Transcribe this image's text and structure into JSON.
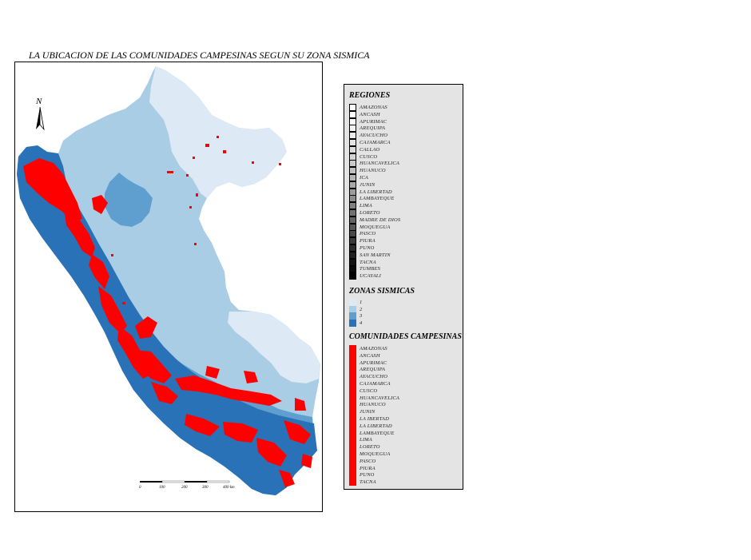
{
  "title": "LA UBICACION DE LAS COMUNIDADES CAMPESINAS SEGUN SU ZONA SISMICA",
  "north_arrow": {
    "label": "N",
    "icon": "north-arrow-icon"
  },
  "scale_bar": {
    "labels": [
      "0",
      "100",
      "200",
      "300",
      "400 km"
    ]
  },
  "colors": {
    "zone1": "#dde9f5",
    "zone2": "#aacde6",
    "zone3": "#5f9fcf",
    "zone4": "#2a72b7",
    "communities": "#ff0000"
  },
  "legend": {
    "regiones": {
      "title": "REGIONES",
      "items": [
        {
          "label": "AMAZONAS",
          "color": "#ffffff"
        },
        {
          "label": "ANCASH",
          "color": "#ffffff"
        },
        {
          "label": "APURIMAC",
          "color": "#fafafa"
        },
        {
          "label": "AREQUIPA",
          "color": "#f2f2f2"
        },
        {
          "label": "AYACUCHO",
          "color": "#ebebeb"
        },
        {
          "label": "CAJAMARCA",
          "color": "#e4e4e4"
        },
        {
          "label": "CALLAO",
          "color": "#dcdcdc"
        },
        {
          "label": "CUSCO",
          "color": "#d4d4d4"
        },
        {
          "label": "HUANCAVELICA",
          "color": "#cacaca"
        },
        {
          "label": "HUANUCO",
          "color": "#c0c0c0"
        },
        {
          "label": "ICA",
          "color": "#b4b4b4"
        },
        {
          "label": "JUNIN",
          "color": "#a8a8a8"
        },
        {
          "label": "LA LIBERTAD",
          "color": "#9c9c9c"
        },
        {
          "label": "LAMBAYEQUE",
          "color": "#8e8e8e"
        },
        {
          "label": "LIMA",
          "color": "#808080"
        },
        {
          "label": "LORETO",
          "color": "#727272"
        },
        {
          "label": "MADRE DE DIOS",
          "color": "#646464"
        },
        {
          "label": "MOQUEGUA",
          "color": "#565656"
        },
        {
          "label": "PASCO",
          "color": "#484848"
        },
        {
          "label": "PIURA",
          "color": "#3a3a3a"
        },
        {
          "label": "PUNO",
          "color": "#2c2c2c"
        },
        {
          "label": "SAN MARTIN",
          "color": "#1f1f1f"
        },
        {
          "label": "TACNA",
          "color": "#141414"
        },
        {
          "label": "TUMBES",
          "color": "#0a0a0a"
        },
        {
          "label": "UCAYALI",
          "color": "#000000"
        }
      ]
    },
    "zonas": {
      "title": "ZONAS SISMICAS",
      "items": [
        {
          "label": "1",
          "color": "#dde9f5"
        },
        {
          "label": "2",
          "color": "#aacde6"
        },
        {
          "label": "3",
          "color": "#5f9fcf"
        },
        {
          "label": "4",
          "color": "#2a72b7"
        }
      ]
    },
    "comunidades": {
      "title": "COMUNIDADES CAMPESINAS",
      "items": [
        "AMAZONAS",
        "ANCASH",
        "APURIMAC",
        "AREQUIPA",
        "AYACUCHO",
        "CAJAMARCA",
        "CUSCO",
        "HUANCAVELICA",
        "HUANUCO",
        "JUNIN",
        "LA IBERTAD",
        "LA LIBERTAD",
        "LAMBAYEQUE",
        "LIMA",
        "LORETO",
        "MOQUEGUA",
        "PASCO",
        "PIURA",
        "PUNO",
        "TACNA"
      ]
    }
  }
}
